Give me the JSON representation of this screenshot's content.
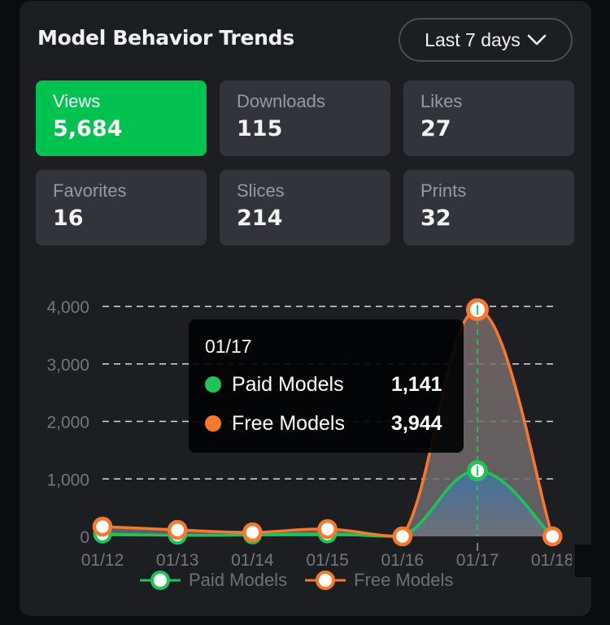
{
  "header": {
    "title": "Model Behavior Trends",
    "range_label": "Last 7 days",
    "range_icon": "chevron-down-icon"
  },
  "stats": [
    {
      "label": "Views",
      "value": "5,684",
      "active": true
    },
    {
      "label": "Downloads",
      "value": "115",
      "active": false
    },
    {
      "label": "Likes",
      "value": "27",
      "active": false
    },
    {
      "label": "Favorites",
      "value": "16",
      "active": false
    },
    {
      "label": "Slices",
      "value": "214",
      "active": false
    },
    {
      "label": "Prints",
      "value": "32",
      "active": false
    }
  ],
  "colors": {
    "accent": "#00c250",
    "paid": "#1fc35a",
    "free": "#f7792f",
    "card_bg": "#1d1e22",
    "stat_bg": "#32333b"
  },
  "tooltip": {
    "date": "01/17",
    "rows": [
      {
        "name": "Paid Models",
        "value": "1,141",
        "color": "#1fc35a"
      },
      {
        "name": "Free Models",
        "value": "3,944",
        "color": "#f7792f"
      }
    ]
  },
  "legend": [
    {
      "name": "Paid Models",
      "color": "#1fc35a"
    },
    {
      "name": "Free Models",
      "color": "#f7792f"
    }
  ],
  "chart_data": {
    "type": "area",
    "title": "Model Behavior Trends",
    "xlabel": "",
    "ylabel": "",
    "categories": [
      "01/12",
      "01/13",
      "01/14",
      "01/15",
      "01/16",
      "01/17",
      "01/18"
    ],
    "series": [
      {
        "name": "Paid Models",
        "color": "#1fc35a",
        "values": [
          40,
          20,
          25,
          40,
          0,
          1141,
          0
        ]
      },
      {
        "name": "Free Models",
        "color": "#f7792f",
        "values": [
          170,
          113,
          70,
          127,
          0,
          3944,
          0
        ]
      }
    ],
    "y_ticks": [
      0,
      1000,
      2000,
      3000,
      4000
    ],
    "y_tick_labels": [
      "0",
      "1,000",
      "2,000",
      "3,000",
      "4,000"
    ],
    "ylim": [
      0,
      4000
    ],
    "grid": true,
    "legend_position": "bottom",
    "smooth": true,
    "highlighted_category": "01/17"
  }
}
